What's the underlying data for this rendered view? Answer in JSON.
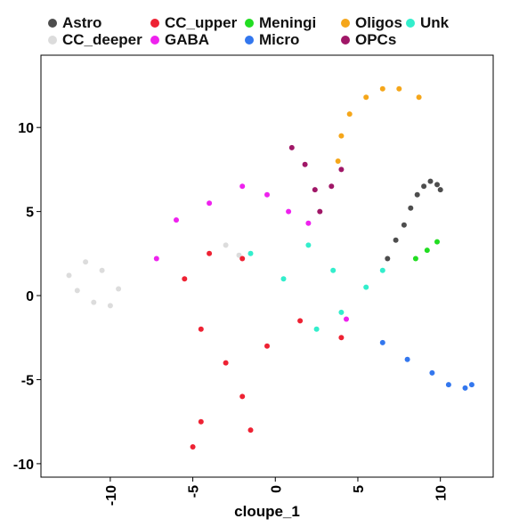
{
  "chart_data": {
    "type": "scatter",
    "xlabel": "cloupe_1",
    "ylabel": "",
    "xlim": [
      -14.2,
      13.2
    ],
    "ylim": [
      -10.8,
      14.3
    ],
    "x_ticks": [
      -10,
      -5,
      0,
      5,
      10
    ],
    "y_ticks": [
      -10,
      -5,
      0,
      5,
      10
    ],
    "x_tick_labels": [
      "-10",
      "-5",
      "0",
      "5",
      "10"
    ],
    "y_tick_labels": [
      "-10",
      "-5",
      "0",
      "5",
      "10"
    ],
    "grid": false,
    "legend_position": "top",
    "series": [
      {
        "name": "Astro",
        "color": "#4d4d4d",
        "points": [
          [
            6.8,
            2.2
          ],
          [
            7.3,
            3.3
          ],
          [
            7.8,
            4.2
          ],
          [
            8.2,
            5.2
          ],
          [
            8.6,
            6.0
          ],
          [
            9.0,
            6.5
          ],
          [
            9.4,
            6.8
          ],
          [
            9.8,
            6.6
          ],
          [
            10.0,
            6.3
          ]
        ]
      },
      {
        "name": "CC_deeper",
        "color": "#dcdcdc",
        "points": [
          [
            -12.5,
            1.2
          ],
          [
            -12.0,
            0.3
          ],
          [
            -11.0,
            -0.4
          ],
          [
            -10.0,
            -0.6
          ],
          [
            -9.5,
            0.4
          ],
          [
            -10.5,
            1.5
          ],
          [
            -11.5,
            2.0
          ],
          [
            -3.0,
            3.0
          ],
          [
            -2.2,
            2.4
          ]
        ]
      },
      {
        "name": "CC_upper",
        "color": "#ee2233",
        "points": [
          [
            -5.5,
            1.0
          ],
          [
            -4.0,
            2.5
          ],
          [
            -2.0,
            2.2
          ],
          [
            -4.5,
            -2.0
          ],
          [
            -3.0,
            -4.0
          ],
          [
            -2.0,
            -6.0
          ],
          [
            -4.5,
            -7.5
          ],
          [
            -5.0,
            -9.0
          ],
          [
            -1.5,
            -8.0
          ],
          [
            -0.5,
            -3.0
          ],
          [
            1.5,
            -1.5
          ],
          [
            4.0,
            -2.5
          ]
        ]
      },
      {
        "name": "GABA",
        "color": "#ee22ee",
        "points": [
          [
            -7.2,
            2.2
          ],
          [
            -6.0,
            4.5
          ],
          [
            -4.0,
            5.5
          ],
          [
            -2.0,
            6.5
          ],
          [
            -0.5,
            6.0
          ],
          [
            0.8,
            5.0
          ],
          [
            2.0,
            4.3
          ],
          [
            4.3,
            -1.4
          ]
        ]
      },
      {
        "name": "Meningi",
        "color": "#22dd22",
        "points": [
          [
            8.5,
            2.2
          ],
          [
            9.2,
            2.7
          ],
          [
            9.8,
            3.2
          ]
        ]
      },
      {
        "name": "Micro",
        "color": "#3377ee",
        "points": [
          [
            6.5,
            -2.8
          ],
          [
            8.0,
            -3.8
          ],
          [
            9.5,
            -4.6
          ],
          [
            10.5,
            -5.3
          ],
          [
            11.5,
            -5.5
          ],
          [
            11.9,
            -5.3
          ]
        ]
      },
      {
        "name": "Oligos",
        "color": "#f5a61a",
        "points": [
          [
            3.8,
            8.0
          ],
          [
            4.0,
            9.5
          ],
          [
            4.5,
            10.8
          ],
          [
            5.5,
            11.8
          ],
          [
            6.5,
            12.3
          ],
          [
            7.5,
            12.3
          ],
          [
            8.7,
            11.8
          ]
        ]
      },
      {
        "name": "OPCs",
        "color": "#a01767",
        "points": [
          [
            1.0,
            8.8
          ],
          [
            1.8,
            7.8
          ],
          [
            2.4,
            6.3
          ],
          [
            2.7,
            5.0
          ],
          [
            3.4,
            6.5
          ],
          [
            4.0,
            7.5
          ]
        ]
      },
      {
        "name": "Unk",
        "color": "#33eecc",
        "points": [
          [
            -1.5,
            2.5
          ],
          [
            0.5,
            1.0
          ],
          [
            2.0,
            3.0
          ],
          [
            3.5,
            1.5
          ],
          [
            4.0,
            -1.0
          ],
          [
            5.5,
            0.5
          ],
          [
            6.5,
            1.5
          ],
          [
            2.5,
            -2.0
          ]
        ]
      }
    ]
  }
}
